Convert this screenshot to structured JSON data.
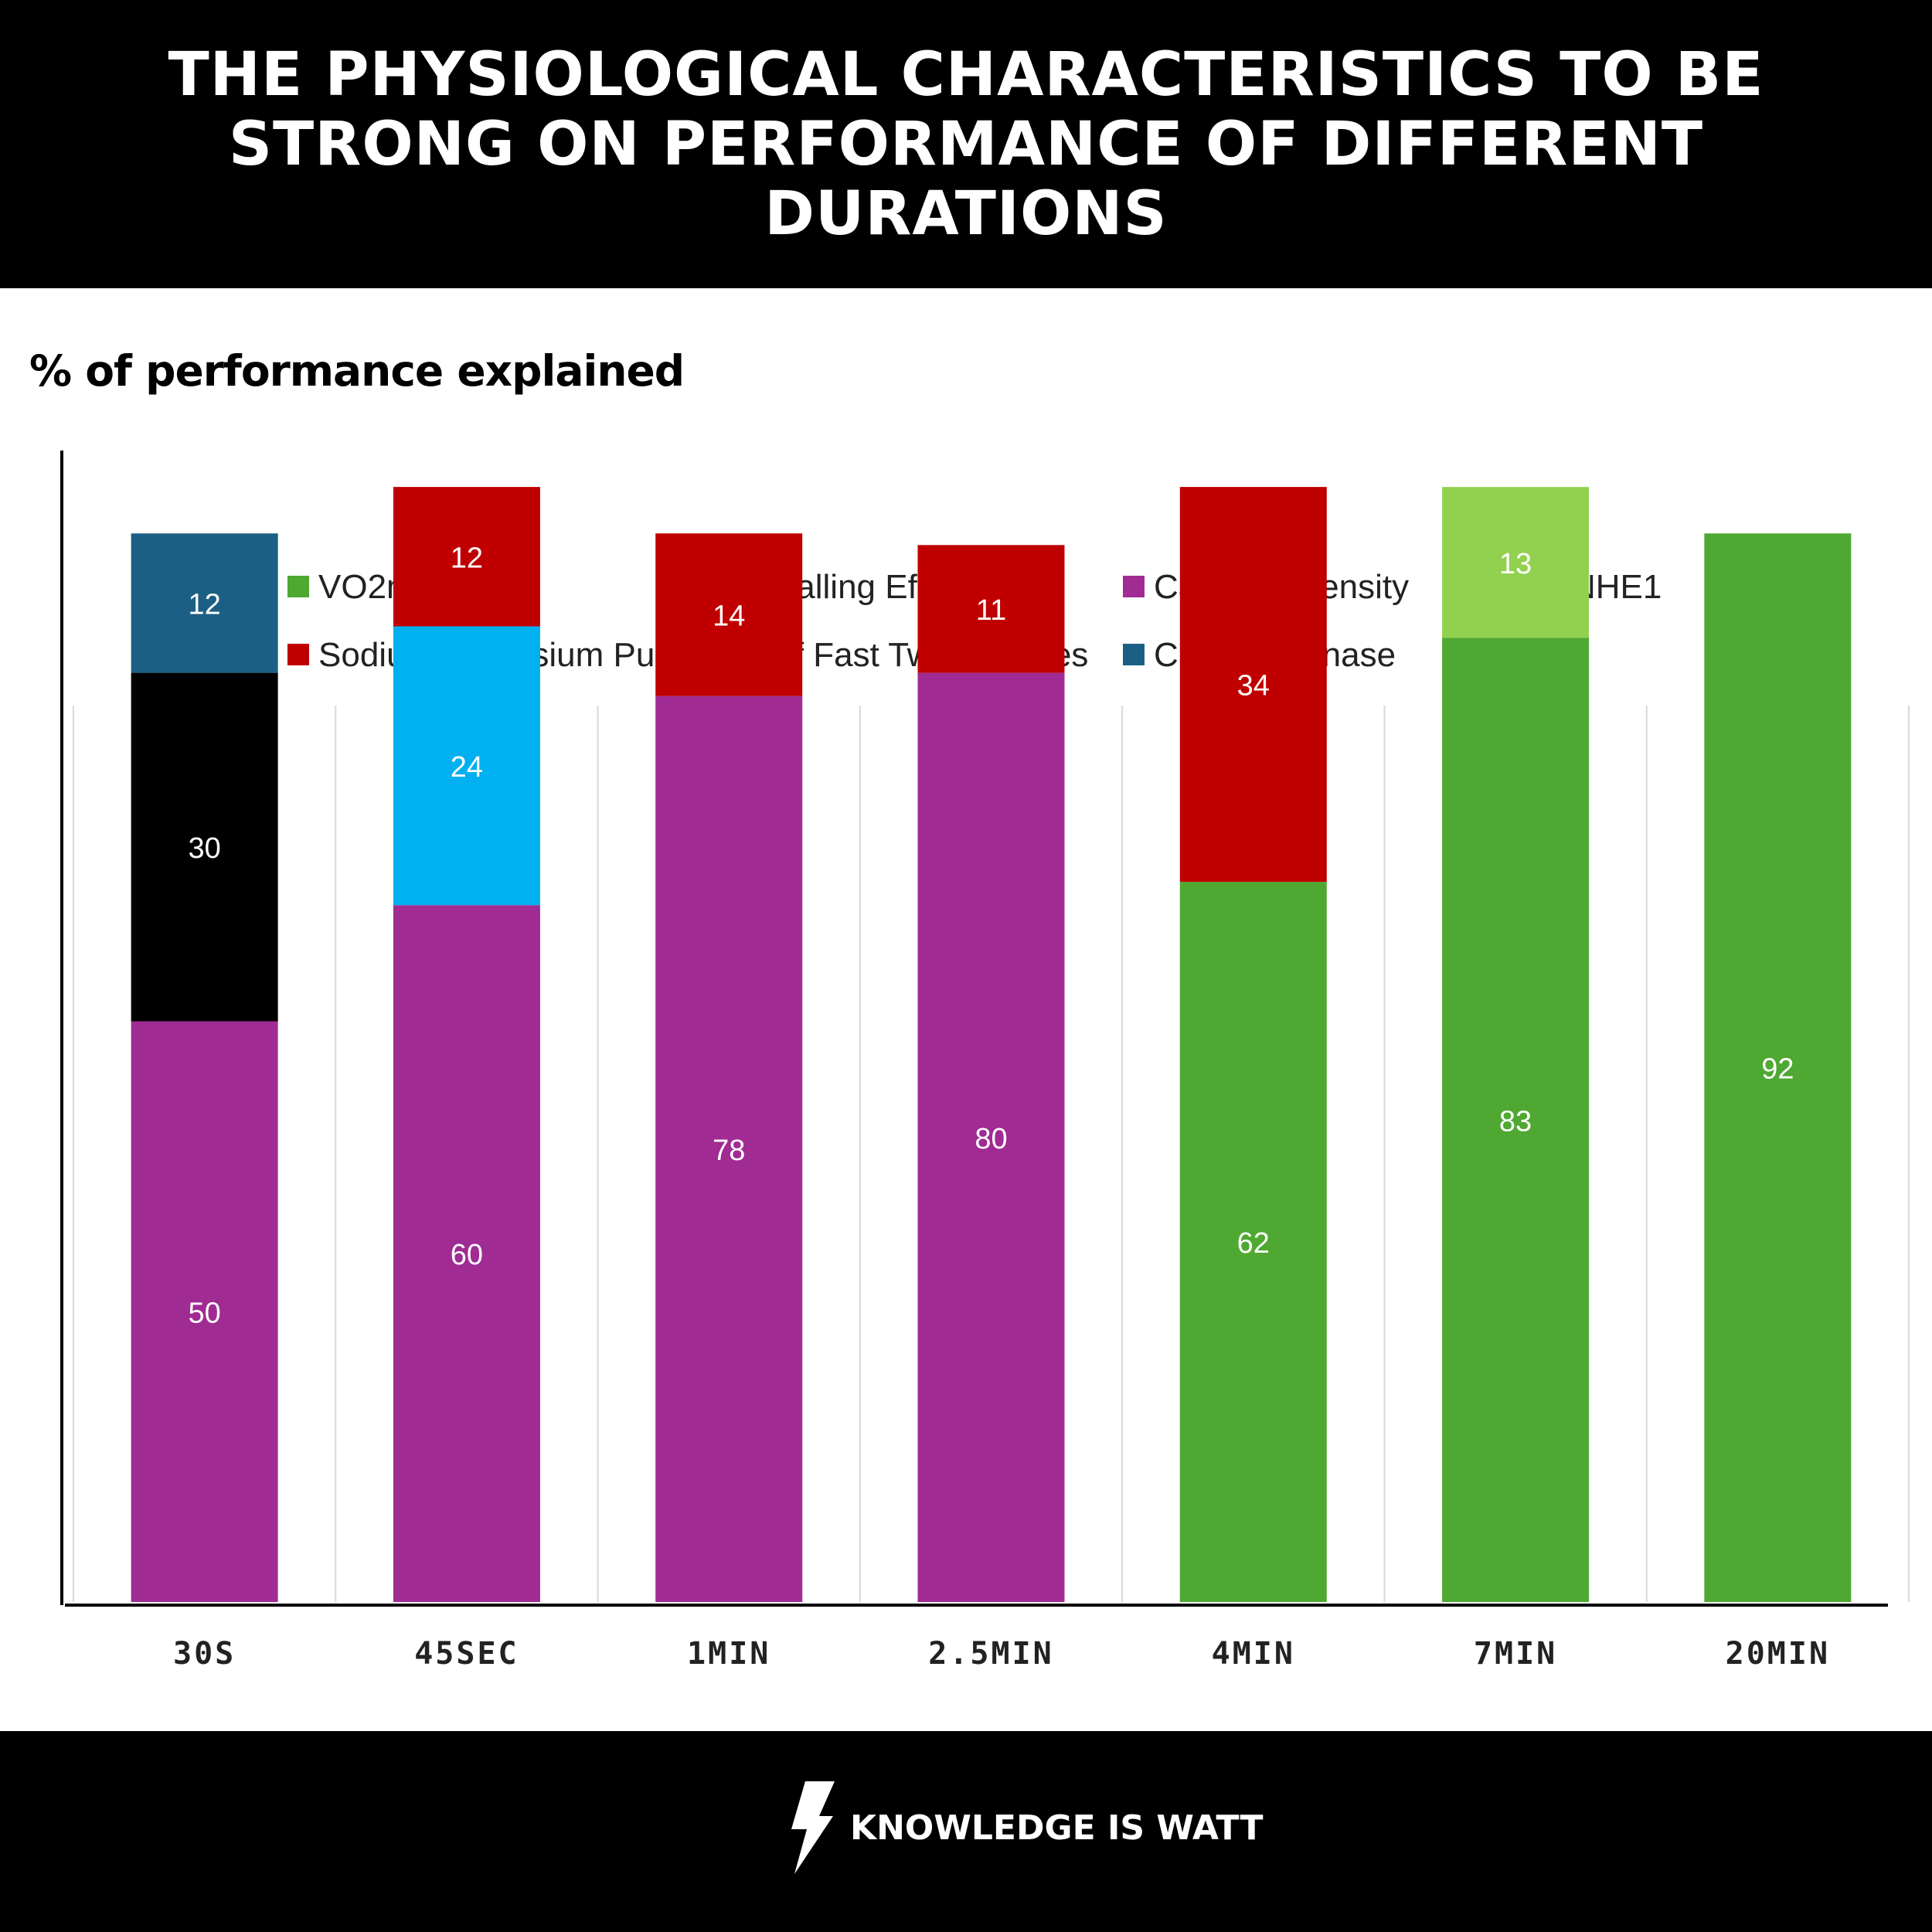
{
  "header": {
    "title": "THE PHYSIOLOGICAL CHARACTERISTICS TO BE STRONG ON PERFORMANCE OF DIFFERENT DURATIONS"
  },
  "footer": {
    "brand": "KNOWLEDGE IS WATT",
    "logo_icon": "lightning-bolt-icon"
  },
  "chart_data": {
    "type": "bar",
    "stacked": true,
    "ylabel": "% of performance explained",
    "xlabel": "",
    "ylim": [
      0,
      100
    ],
    "grid": "vertical category separators",
    "legend_position": "top",
    "categories": [
      "30S",
      "45SEC",
      "1MIN",
      "2.5MIN",
      "4MIN",
      "7MIN",
      "20MIN"
    ],
    "series": [
      {
        "name": "VO2max",
        "color": "#4fa832",
        "values": [
          null,
          null,
          null,
          null,
          62,
          83,
          92
        ]
      },
      {
        "name": "Pedalling  Eficiency",
        "color": "#92d050",
        "values": [
          null,
          null,
          null,
          null,
          null,
          13,
          null
        ]
      },
      {
        "name": "Capillary Density",
        "color": "#a02b93",
        "values": [
          50,
          60,
          78,
          80,
          null,
          null,
          null
        ]
      },
      {
        "name": "NHE1",
        "color": "#00b0f0",
        "values": [
          null,
          24,
          null,
          null,
          null,
          null,
          null
        ]
      },
      {
        "name": "Sodium-Potassium Pump",
        "color": "#c00000",
        "values": [
          null,
          12,
          14,
          11,
          34,
          null,
          null
        ]
      },
      {
        "name": "% of Fast Twitch Fibres",
        "color": "#000000",
        "values": [
          30,
          null,
          null,
          null,
          null,
          null,
          null
        ]
      },
      {
        "name": "Creatine Kinase",
        "color": "#1c5f84",
        "values": [
          12,
          null,
          null,
          null,
          null,
          null,
          null
        ]
      }
    ],
    "label_labels_shown": [
      [
        null,
        null,
        50,
        null,
        null,
        30,
        12
      ],
      [
        null,
        null,
        60,
        24,
        12,
        null,
        null
      ],
      [
        null,
        null,
        78,
        null,
        14,
        null,
        null
      ],
      [
        null,
        null,
        80,
        null,
        11,
        null,
        null
      ],
      [
        62,
        null,
        null,
        null,
        34,
        null,
        null
      ],
      [
        83,
        13,
        null,
        null,
        null,
        null,
        null
      ],
      [
        92,
        null,
        null,
        null,
        null,
        null,
        null
      ]
    ]
  }
}
